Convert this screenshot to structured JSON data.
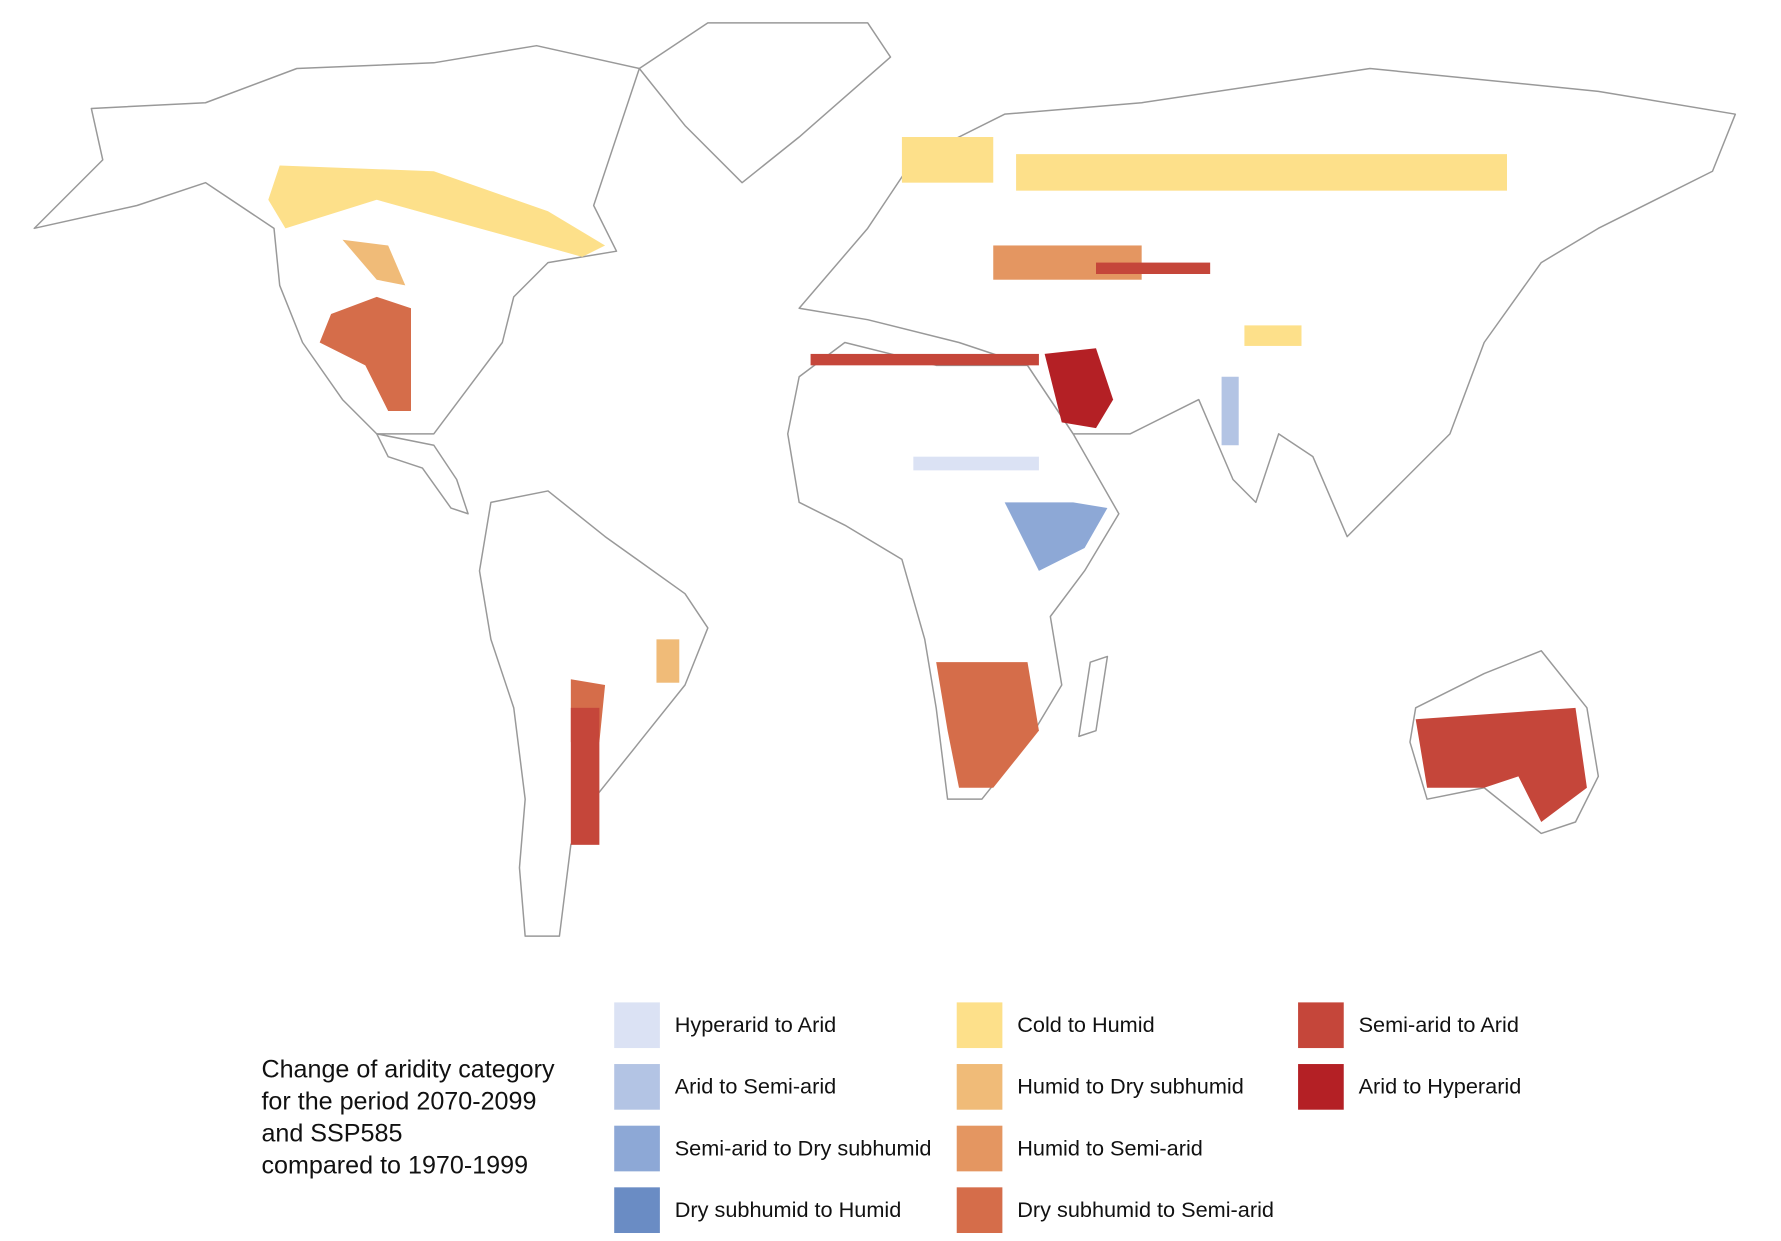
{
  "legend": {
    "title": [
      "Change of aridity category",
      "for the period 2070-2099",
      "and SSP585",
      "compared to 1970-1999"
    ],
    "items": [
      {
        "name": "Hyperarid to Arid",
        "color": "#dbe2f4"
      },
      {
        "name": "Arid to Semi-arid",
        "color": "#b3c4e4"
      },
      {
        "name": "Semi-arid to Dry subhumid",
        "color": "#8da8d6"
      },
      {
        "name": "Dry subhumid to Humid",
        "color": "#6a8cc4"
      },
      {
        "name": "Cold to Humid",
        "color": "#fde08a"
      },
      {
        "name": "Humid to Dry subhumid",
        "color": "#f0bb78"
      },
      {
        "name": "Humid to Semi-arid",
        "color": "#e49661"
      },
      {
        "name": "Dry subhumid to Semi-arid",
        "color": "#d56d4a"
      },
      {
        "name": "Semi-arid to Arid",
        "color": "#c5463a"
      },
      {
        "name": "Arid to Hyperarid",
        "color": "#b42025"
      }
    ]
  }
}
